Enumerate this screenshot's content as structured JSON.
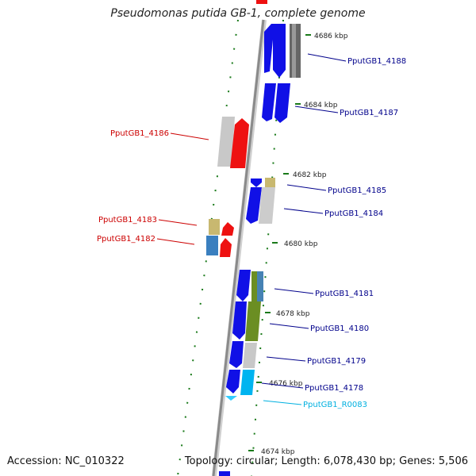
{
  "title": "Pseudomonas putida GB-1, complete genome",
  "accession": "Accession: NC_010322",
  "topology": "Topology: circular; Length: 6,078,430 bp; Genes: 5,506",
  "colors": {
    "backbone": "#888888",
    "tick": "#1a7a1a",
    "forward_label": "#00008b",
    "reverse_label": "#cc0000",
    "rna_label": "#00b0e0"
  },
  "ticks": [
    {
      "label": "4686 kbp"
    },
    {
      "label": "4684 kbp"
    },
    {
      "label": "4682 kbp"
    },
    {
      "label": "4680 kbp"
    },
    {
      "label": "4678 kbp"
    },
    {
      "label": "4676 kbp"
    },
    {
      "label": "4674 kbp"
    }
  ],
  "genes": [
    {
      "name": "PputGB1_4188",
      "strand": "forward",
      "color": "#1010e6"
    },
    {
      "name": "PputGB1_4187",
      "strand": "forward",
      "color": "#1010e6"
    },
    {
      "name": "PputGB1_4186",
      "strand": "reverse",
      "color": "#ee1111"
    },
    {
      "name": "PputGB1_4185",
      "strand": "forward",
      "color": "#1010e6"
    },
    {
      "name": "PputGB1_4184",
      "strand": "forward",
      "color": "#1010e6"
    },
    {
      "name": "PputGB1_4183",
      "strand": "reverse",
      "color": "#ee1111"
    },
    {
      "name": "PputGB1_4182",
      "strand": "reverse",
      "color": "#ee1111"
    },
    {
      "name": "PputGB1_4181",
      "strand": "forward",
      "color": "#1010e6"
    },
    {
      "name": "PputGB1_4180",
      "strand": "forward",
      "color": "#1010e6"
    },
    {
      "name": "PputGB1_4179",
      "strand": "forward",
      "color": "#1010e6"
    },
    {
      "name": "PputGB1_4178",
      "strand": "forward",
      "color": "#1010e6"
    },
    {
      "name": "PputGB1_R0083",
      "strand": "rna",
      "color": "#33ccff"
    }
  ]
}
